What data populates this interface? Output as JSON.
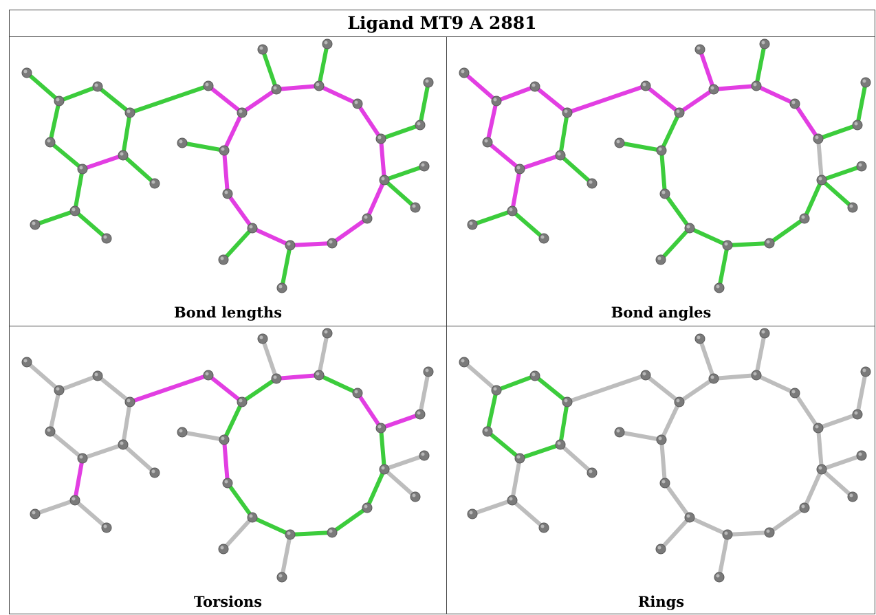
{
  "title": "Ligand MT9 A 2881",
  "colors": {
    "good": "#3ccc3c",
    "outlier": "#e23ee2",
    "neutral": "#bdbdbd",
    "atom": "#7a7a7a"
  },
  "panels": [
    {
      "caption": "Bond lengths",
      "outliers": [
        [
          8,
          9
        ],
        [
          9,
          10
        ],
        [
          11,
          12
        ],
        [
          12,
          13
        ],
        [
          13,
          14
        ],
        [
          14,
          15
        ],
        [
          15,
          16
        ],
        [
          16,
          17
        ],
        [
          17,
          18
        ],
        [
          18,
          19
        ],
        [
          19,
          20
        ],
        [
          20,
          21
        ],
        [
          21,
          22
        ],
        [
          22,
          23
        ],
        [
          23,
          11
        ]
      ],
      "neutral": []
    },
    {
      "caption": "Bond angles",
      "outliers": [
        [
          0,
          1
        ],
        [
          1,
          2
        ],
        [
          1,
          3
        ],
        [
          3,
          4
        ],
        [
          6,
          5
        ],
        [
          5,
          7
        ],
        [
          4,
          28
        ],
        [
          28,
          29
        ],
        [
          8,
          9
        ],
        [
          9,
          10
        ],
        [
          11,
          12
        ],
        [
          12,
          13
        ],
        [
          13,
          14
        ],
        [
          14,
          24
        ],
        [
          14,
          15
        ],
        [
          15,
          16
        ],
        [
          16,
          17
        ]
      ],
      "neutral": [
        [
          17,
          18
        ]
      ]
    },
    {
      "caption": "Torsions",
      "outliers": [
        [
          4,
          9
        ],
        [
          9,
          10
        ],
        [
          5,
          7
        ],
        [
          12,
          13
        ],
        [
          16,
          17
        ],
        [
          17,
          26
        ],
        [
          23,
          11
        ],
        [
          11,
          22
        ]
      ],
      "neutral": [
        "all-except-ring-and-macrocycle"
      ]
    },
    {
      "caption": "Rings",
      "outliers": [],
      "neutral": [
        "all-except-benzene"
      ]
    }
  ]
}
